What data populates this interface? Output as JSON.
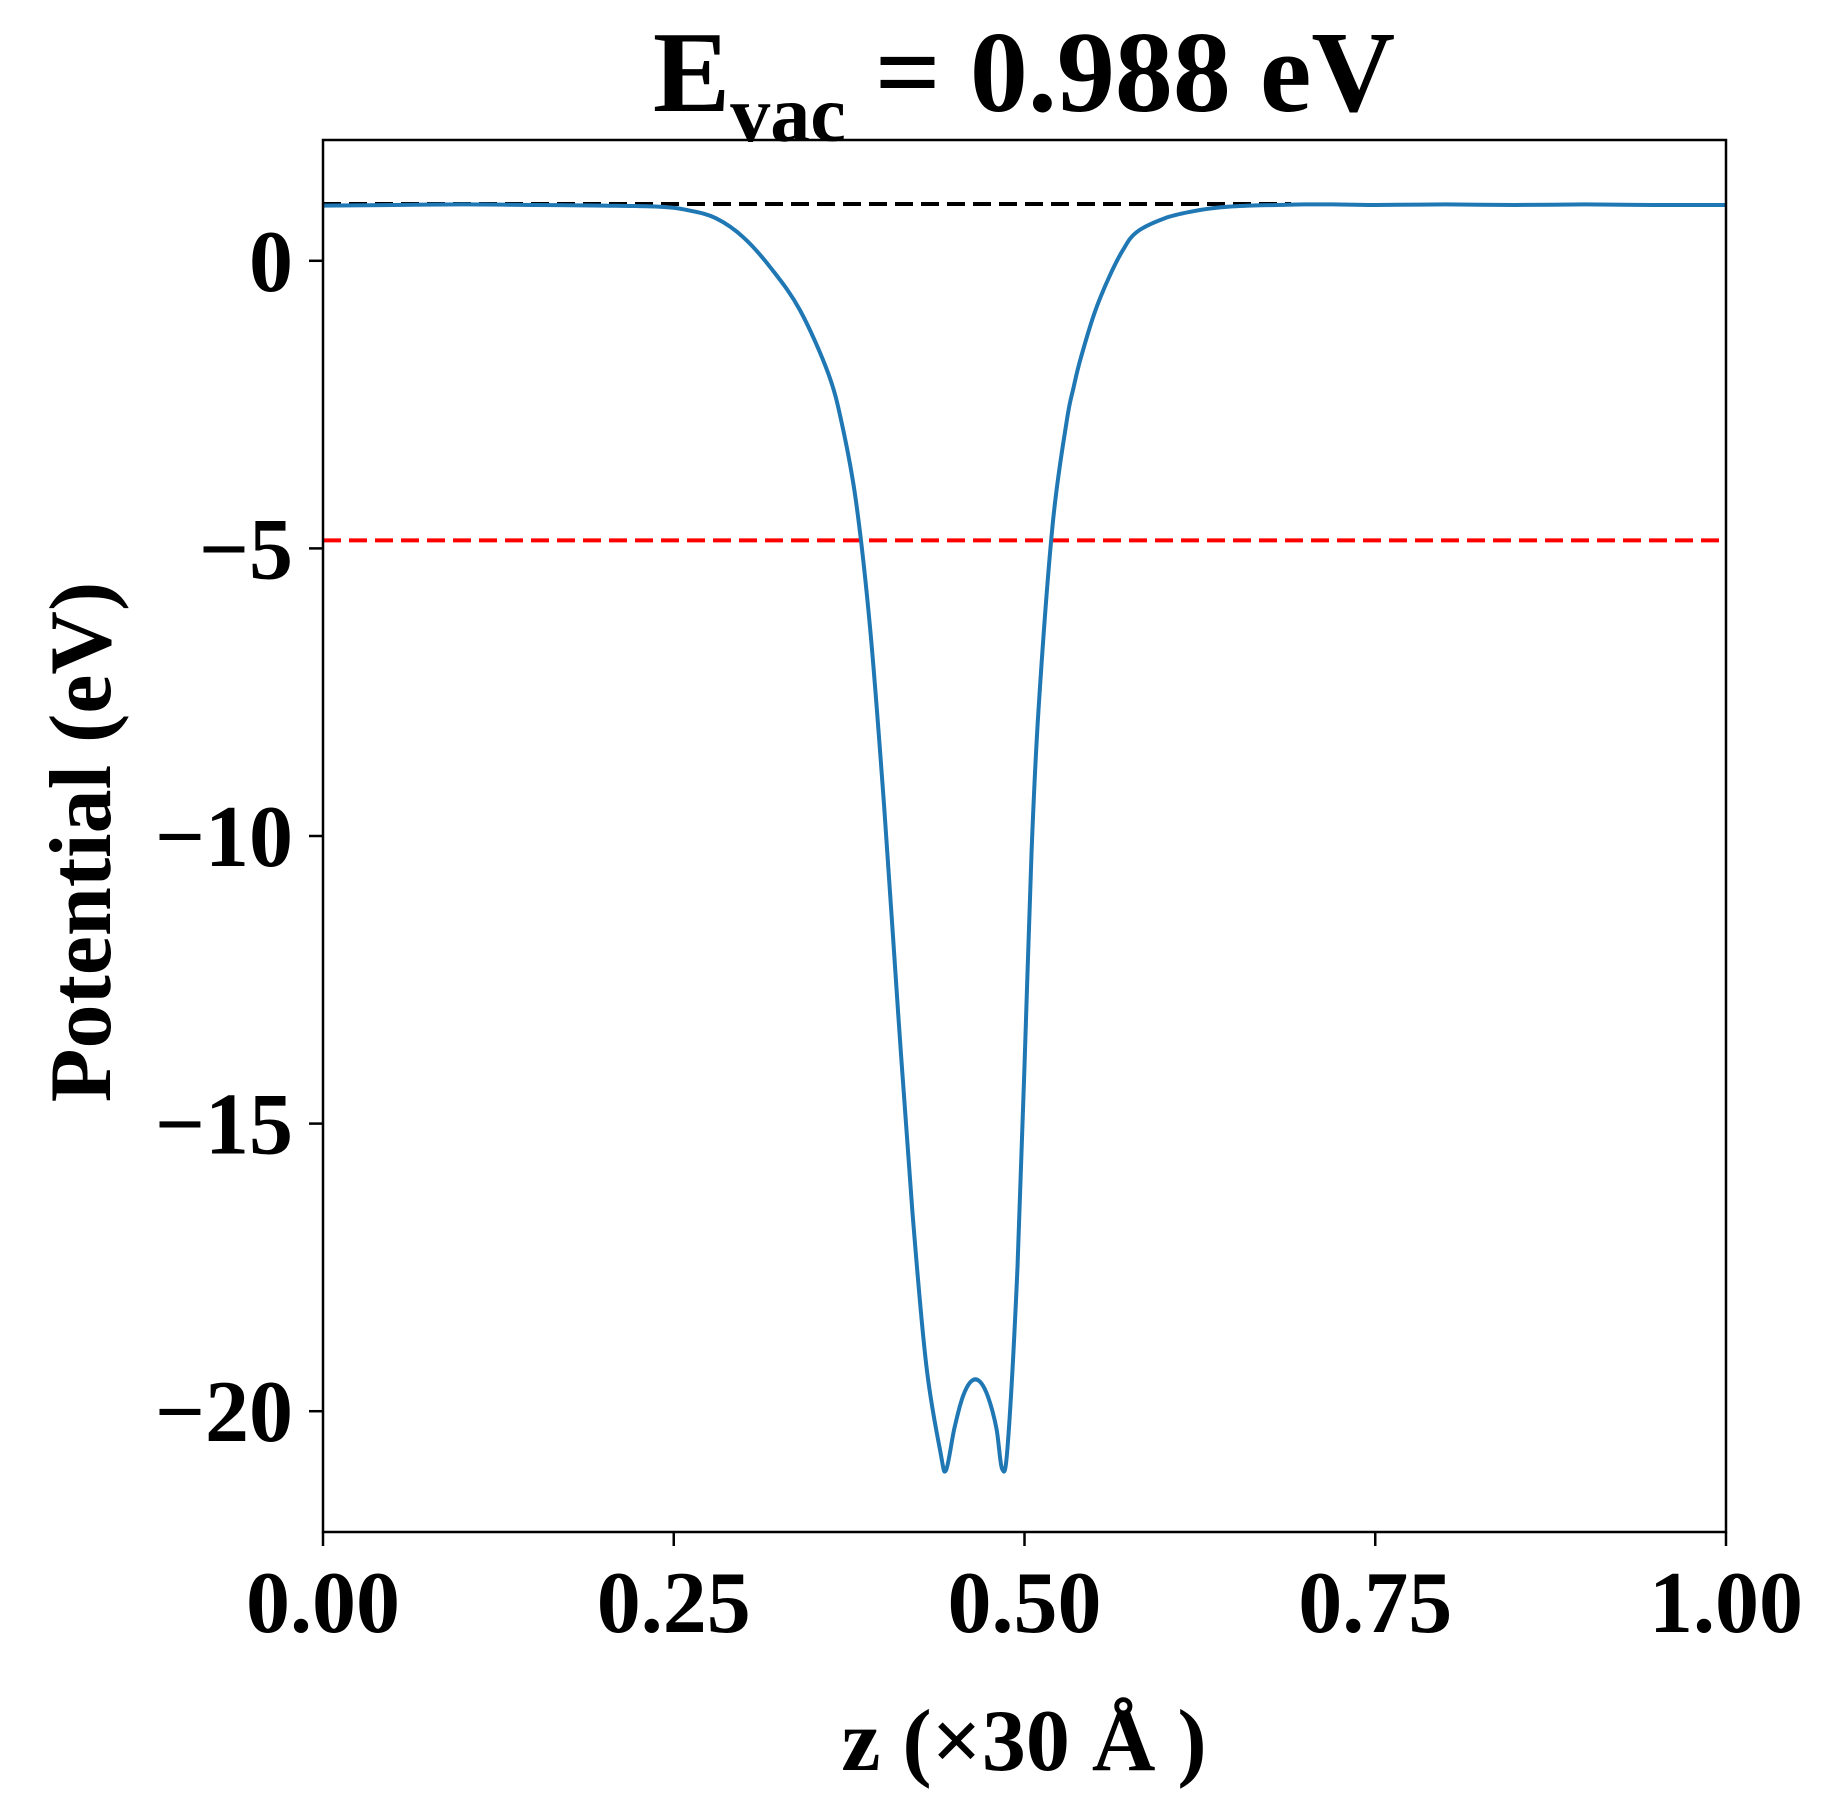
{
  "chart_data": {
    "type": "line",
    "title": {
      "main": "E",
      "subscript": "vac",
      "rest": " = 0.988 eV"
    },
    "xlabel": "z (×30 Å )",
    "ylabel": "Potential (eV)",
    "xlim": [
      0.0,
      1.0
    ],
    "ylim": [
      -22.1,
      2.1
    ],
    "xticks": [
      0.0,
      0.25,
      0.5,
      0.75,
      1.0
    ],
    "xtick_labels": [
      "0.00",
      "0.25",
      "0.50",
      "0.75",
      "1.00"
    ],
    "yticks": [
      0,
      -5,
      -10,
      -15,
      -20
    ],
    "ytick_labels": [
      "0",
      "−5",
      "−10",
      "−15",
      "−20"
    ],
    "grid": false,
    "reference_lines": [
      {
        "y": 0.988,
        "style": "dashed",
        "color": "#000000",
        "x_range": [
          0.0,
          0.69
        ]
      },
      {
        "y": -4.86,
        "style": "dashed",
        "color": "#ff0000",
        "x_range": [
          0.0,
          1.0
        ]
      }
    ],
    "series": [
      {
        "color": "#1f77b4",
        "x": [
          0.0,
          0.05,
          0.1,
          0.15,
          0.2,
          0.24,
          0.26,
          0.28,
          0.3,
          0.32,
          0.34,
          0.36,
          0.37,
          0.38,
          0.39,
          0.4,
          0.41,
          0.42,
          0.43,
          0.44,
          0.444,
          0.45,
          0.456,
          0.462,
          0.468,
          0.474,
          0.48,
          0.484,
          0.488,
          0.495,
          0.5,
          0.505,
          0.51,
          0.52,
          0.53,
          0.535,
          0.54,
          0.55,
          0.56,
          0.57,
          0.58,
          0.6,
          0.62,
          0.64,
          0.66,
          0.68,
          0.7,
          0.72,
          0.75,
          0.8,
          0.85,
          0.9,
          0.95,
          1.0
        ],
        "y": [
          0.96,
          0.97,
          0.98,
          0.97,
          0.96,
          0.94,
          0.88,
          0.74,
          0.4,
          -0.15,
          -0.86,
          -1.95,
          -2.85,
          -4.2,
          -6.4,
          -9.5,
          -13.1,
          -16.5,
          -19.2,
          -20.7,
          -21.03,
          -20.3,
          -19.75,
          -19.48,
          -19.48,
          -19.75,
          -20.3,
          -21.0,
          -20.6,
          -17.5,
          -14.0,
          -10.3,
          -7.8,
          -4.6,
          -2.8,
          -2.2,
          -1.7,
          -0.9,
          -0.3,
          0.18,
          0.5,
          0.74,
          0.86,
          0.93,
          0.96,
          0.97,
          0.98,
          0.98,
          0.97,
          0.98,
          0.97,
          0.98,
          0.97,
          0.97
        ]
      }
    ]
  }
}
